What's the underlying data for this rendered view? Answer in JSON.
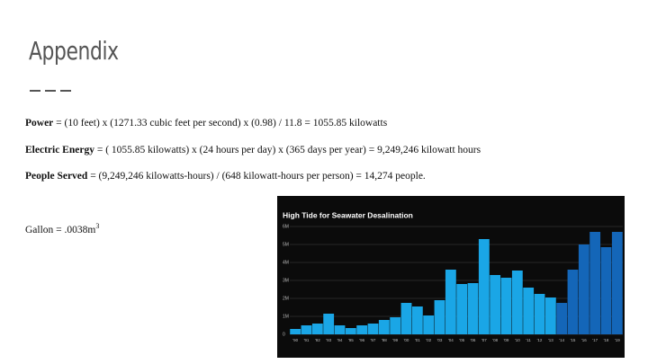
{
  "title": "Appendix",
  "formulas": [
    {
      "term": "Power",
      "text": "= (10 feet) x (1271.33 cubic feet per second) x (0.98) / 11.8 =  1055.85 kilowatts"
    },
    {
      "term": "Electric Energy",
      "text": "= ( 1055.85 kilowatts) x (24 hours per day) x (365 days per year) = 9,249,246 kilowatt hours"
    },
    {
      "term": "People Served",
      "text": "= (9,249,246 kilowatts-hours) / (648  kilowatt-hours per person) = 14,274 people."
    }
  ],
  "note": {
    "text": "Gallon = .0038m",
    "sup": "3"
  },
  "chart_data": {
    "type": "bar",
    "title": "High Tide for Seawater Desalination",
    "categories": [
      "'90",
      "'91",
      "'92",
      "'93",
      "'94",
      "'95",
      "'96",
      "'97",
      "'98",
      "'99",
      "'00",
      "'01",
      "'02",
      "'03",
      "'04",
      "'05",
      "'06",
      "'07",
      "'08",
      "'09",
      "'10",
      "'11",
      "'12",
      "'13",
      "'14",
      "'15",
      "'16",
      "'17",
      "'18",
      "'19"
    ],
    "values": [
      0.3,
      0.5,
      0.6,
      1.15,
      0.5,
      0.35,
      0.5,
      0.6,
      0.8,
      0.95,
      1.75,
      1.55,
      1.05,
      1.9,
      3.6,
      2.8,
      2.85,
      5.3,
      3.3,
      3.15,
      3.55,
      2.6,
      2.25,
      2.05,
      1.75,
      3.6,
      5.0,
      5.7,
      4.85,
      5.7
    ],
    "colors": [
      "#1aa6e6",
      "#1aa6e6",
      "#1aa6e6",
      "#1aa6e6",
      "#1aa6e6",
      "#1aa6e6",
      "#1aa6e6",
      "#1aa6e6",
      "#1aa6e6",
      "#1aa6e6",
      "#1aa6e6",
      "#1aa6e6",
      "#1aa6e6",
      "#1aa6e6",
      "#1aa6e6",
      "#1aa6e6",
      "#1aa6e6",
      "#1aa6e6",
      "#1aa6e6",
      "#1aa6e6",
      "#1aa6e6",
      "#1aa6e6",
      "#1aa6e6",
      "#1aa6e6",
      "#1466b8",
      "#1466b8",
      "#1466b8",
      "#1466b8",
      "#1466b8",
      "#1466b8"
    ],
    "ylim": [
      0,
      6
    ],
    "yticks": [
      0,
      {
        "value": 1,
        "label": "1M"
      },
      {
        "value": 2,
        "label": "2M"
      },
      {
        "value": 3,
        "label": "3M"
      },
      {
        "value": 4,
        "label": "4M"
      },
      {
        "value": 5,
        "label": "5M"
      },
      {
        "value": 6,
        "label": "6M"
      }
    ],
    "grid": true
  }
}
